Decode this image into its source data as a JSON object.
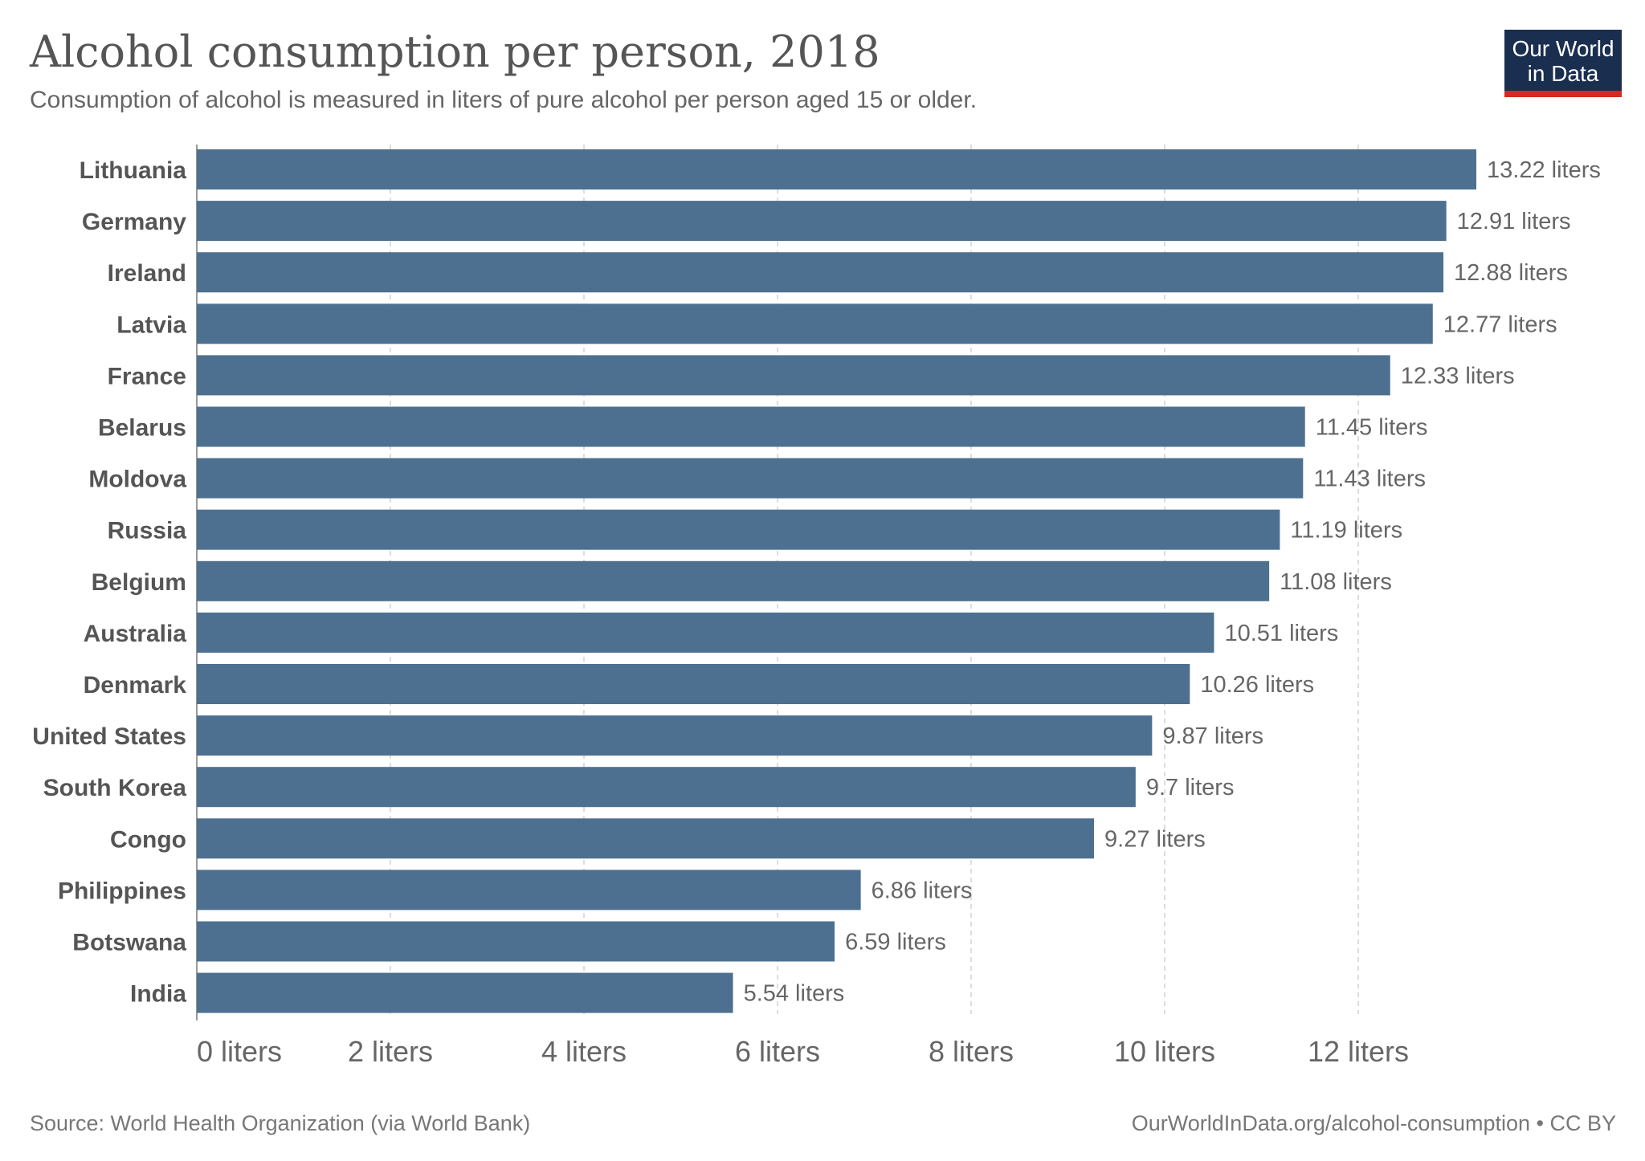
{
  "chart_data": {
    "type": "bar",
    "orientation": "horizontal",
    "title": "Alcohol consumption per person, 2018",
    "subtitle": "Consumption of alcohol is measured in liters of pure alcohol per person aged 15 or older.",
    "categories": [
      "Lithuania",
      "Germany",
      "Ireland",
      "Latvia",
      "France",
      "Belarus",
      "Moldova",
      "Russia",
      "Belgium",
      "Australia",
      "Denmark",
      "United States",
      "South Korea",
      "Congo",
      "Philippines",
      "Botswana",
      "India"
    ],
    "values": [
      13.22,
      12.91,
      12.88,
      12.77,
      12.33,
      11.45,
      11.43,
      11.19,
      11.08,
      10.51,
      10.26,
      9.87,
      9.7,
      9.27,
      6.86,
      6.59,
      5.54
    ],
    "value_labels": [
      "13.22 liters",
      "12.91 liters",
      "12.88 liters",
      "12.77 liters",
      "12.33 liters",
      "11.45 liters",
      "11.43 liters",
      "11.19 liters",
      "11.08 liters",
      "10.51 liters",
      "10.26 liters",
      "9.87 liters",
      "9.7 liters",
      "9.27 liters",
      "6.86 liters",
      "6.59 liters",
      "5.54 liters"
    ],
    "xticks": [
      0,
      2,
      4,
      6,
      8,
      10,
      12
    ],
    "xtick_labels": [
      "0 liters",
      "2 liters",
      "4 liters",
      "6 liters",
      "8 liters",
      "10 liters",
      "12 liters"
    ],
    "xlim": [
      0,
      13.22
    ],
    "grid": "vertical dashed",
    "xlabel": "",
    "ylabel": "",
    "bar_color": "#4e7090",
    "source": "Source: World Health Organization (via World Bank)",
    "credit": "OurWorldInData.org/alcohol-consumption • CC BY"
  },
  "logo": {
    "line1": "Our World",
    "line2": "in Data",
    "bg_color": "#1a2e4f",
    "accent_color": "#d42b21"
  }
}
